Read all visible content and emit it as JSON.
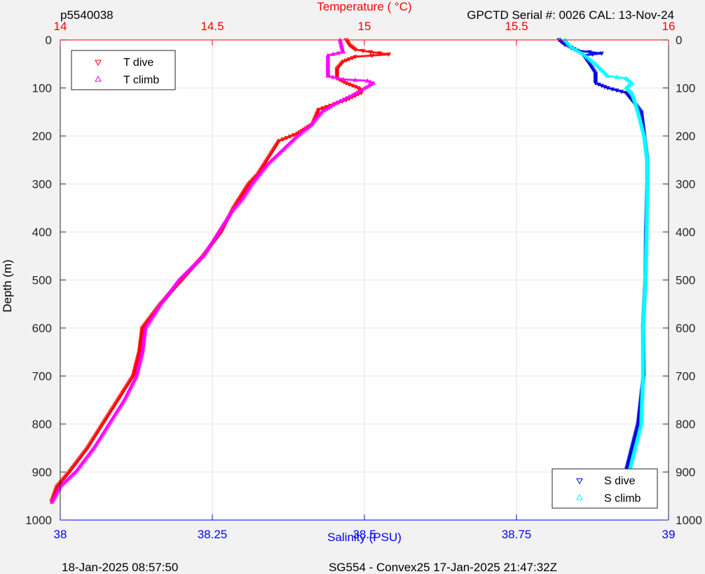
{
  "header": {
    "left_label": "p5540038",
    "right_label": "GPCTD Serial #: 0026 CAL: 13-Nov-24"
  },
  "footer": {
    "left_label": "18-Jan-2025 08:57:50",
    "center_label": "SG554 - Convex25 17-Jan-2025 21:47:32Z"
  },
  "colors": {
    "temp_axis": "#ff0000",
    "sal_axis": "#0000ff",
    "t_dive": "#ff0000",
    "t_climb": "#ff00ff",
    "s_dive": "#0000e0",
    "s_climb": "#00ffff",
    "grid": "#e6e6e6",
    "temp_grid": "#ffd9d9"
  },
  "chart_data": {
    "type": "scatter",
    "y_axis": {
      "label": "Depth (m)",
      "range": [
        0,
        1000
      ],
      "reversed": true,
      "ticks": [
        0,
        100,
        200,
        300,
        400,
        500,
        600,
        700,
        800,
        900,
        1000
      ]
    },
    "temperature_axis": {
      "label": "Temperature (    °C)",
      "position": "top",
      "range": [
        14,
        16
      ],
      "ticks": [
        14,
        14.5,
        15,
        15.5,
        16
      ],
      "tick_labels": [
        "14",
        "14.5",
        "15",
        "15.5",
        "16"
      ]
    },
    "salinity_axis": {
      "label": "Salinity (PSU)",
      "position": "bottom",
      "range": [
        38,
        39
      ],
      "ticks": [
        38,
        38.25,
        38.5,
        38.75,
        39
      ],
      "tick_labels": [
        "38",
        "38.25",
        "38.5",
        "38.75",
        "39"
      ]
    },
    "grid": true,
    "legends": [
      {
        "placement": "top-left",
        "entries": [
          "T dive",
          "T climb"
        ]
      },
      {
        "placement": "bottom-right",
        "entries": [
          "S dive",
          "S climb"
        ]
      }
    ],
    "series": [
      {
        "name": "T dive",
        "axis": "temperature",
        "marker": "triangle-down",
        "points": [
          [
            14.94,
            0
          ],
          [
            14.95,
            10
          ],
          [
            14.97,
            20
          ],
          [
            15.02,
            25
          ],
          [
            15.08,
            30
          ],
          [
            14.97,
            35
          ],
          [
            14.93,
            45
          ],
          [
            14.91,
            60
          ],
          [
            14.91,
            80
          ],
          [
            14.94,
            90
          ],
          [
            14.98,
            100
          ],
          [
            14.99,
            110
          ],
          [
            14.94,
            125
          ],
          [
            14.85,
            145
          ],
          [
            14.83,
            175
          ],
          [
            14.78,
            195
          ],
          [
            14.72,
            210
          ],
          [
            14.7,
            230
          ],
          [
            14.67,
            260
          ],
          [
            14.65,
            280
          ],
          [
            14.62,
            300
          ],
          [
            14.6,
            320
          ],
          [
            14.57,
            350
          ],
          [
            14.53,
            400
          ],
          [
            14.47,
            450
          ],
          [
            14.4,
            500
          ],
          [
            14.33,
            550
          ],
          [
            14.27,
            600
          ],
          [
            14.26,
            650
          ],
          [
            14.24,
            700
          ],
          [
            14.19,
            750
          ],
          [
            14.14,
            800
          ],
          [
            14.09,
            850
          ],
          [
            14.03,
            900
          ],
          [
            13.99,
            930
          ],
          [
            13.97,
            965
          ]
        ]
      },
      {
        "name": "T climb",
        "axis": "temperature",
        "marker": "triangle-up",
        "points": [
          [
            14.92,
            0
          ],
          [
            14.93,
            25
          ],
          [
            14.88,
            32
          ],
          [
            14.88,
            50
          ],
          [
            14.88,
            75
          ],
          [
            14.93,
            82
          ],
          [
            15.01,
            85
          ],
          [
            15.03,
            90
          ],
          [
            14.96,
            115
          ],
          [
            14.91,
            130
          ],
          [
            14.86,
            150
          ],
          [
            14.82,
            180
          ],
          [
            14.78,
            200
          ],
          [
            14.73,
            230
          ],
          [
            14.68,
            260
          ],
          [
            14.63,
            300
          ],
          [
            14.6,
            330
          ],
          [
            14.56,
            360
          ],
          [
            14.52,
            400
          ],
          [
            14.47,
            450
          ],
          [
            14.39,
            500
          ],
          [
            14.33,
            550
          ],
          [
            14.28,
            600
          ],
          [
            14.27,
            650
          ],
          [
            14.25,
            700
          ],
          [
            14.21,
            750
          ],
          [
            14.16,
            800
          ],
          [
            14.11,
            850
          ],
          [
            14.05,
            900
          ],
          [
            14.0,
            930
          ],
          [
            13.97,
            965
          ]
        ]
      },
      {
        "name": "S dive",
        "axis": "salinity",
        "marker": "triangle-down",
        "points": [
          [
            38.82,
            0
          ],
          [
            38.83,
            10
          ],
          [
            38.85,
            22
          ],
          [
            38.89,
            28
          ],
          [
            38.86,
            32
          ],
          [
            38.87,
            50
          ],
          [
            38.88,
            70
          ],
          [
            38.88,
            90
          ],
          [
            38.9,
            100
          ],
          [
            38.93,
            110
          ],
          [
            38.955,
            150
          ],
          [
            38.96,
            200
          ],
          [
            38.965,
            250
          ],
          [
            38.965,
            300
          ],
          [
            38.963,
            400
          ],
          [
            38.962,
            500
          ],
          [
            38.958,
            600
          ],
          [
            38.959,
            700
          ],
          [
            38.95,
            800
          ],
          [
            38.94,
            850
          ],
          [
            38.93,
            900
          ],
          [
            38.925,
            930
          ],
          [
            38.92,
            965
          ]
        ]
      },
      {
        "name": "S climb",
        "axis": "salinity",
        "marker": "triangle-up",
        "points": [
          [
            38.83,
            0
          ],
          [
            38.84,
            15
          ],
          [
            38.86,
            30
          ],
          [
            38.88,
            50
          ],
          [
            38.9,
            75
          ],
          [
            38.93,
            80
          ],
          [
            38.94,
            90
          ],
          [
            38.93,
            100
          ],
          [
            38.94,
            110
          ],
          [
            38.95,
            150
          ],
          [
            38.96,
            200
          ],
          [
            38.965,
            250
          ],
          [
            38.965,
            300
          ],
          [
            38.964,
            400
          ],
          [
            38.962,
            500
          ],
          [
            38.958,
            600
          ],
          [
            38.958,
            700
          ],
          [
            38.955,
            800
          ],
          [
            38.945,
            850
          ],
          [
            38.935,
            900
          ],
          [
            38.925,
            930
          ],
          [
            38.92,
            965
          ]
        ]
      }
    ]
  }
}
